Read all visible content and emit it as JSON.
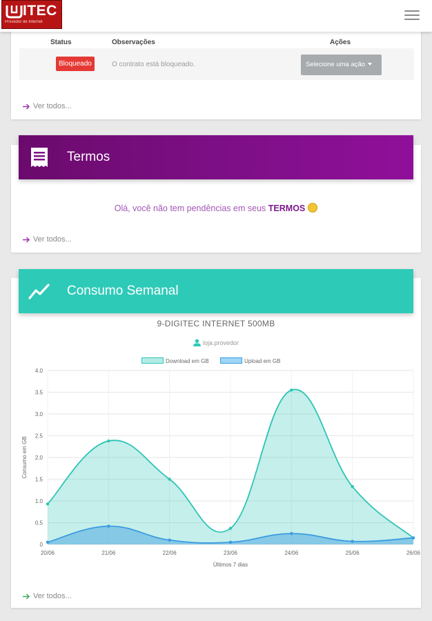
{
  "header": {
    "logo_text": "ITEC",
    "logo_sub": "Provedor de Internet",
    "menu_icon": "hamburger-icon"
  },
  "contracts": {
    "columns": {
      "status": "Status",
      "observations": "Observações",
      "actions": "Ações"
    },
    "row": {
      "status": "Bloqueado",
      "observation": "O contrato está bloqueado.",
      "action_select": "Selecione uma ação"
    },
    "status_color": "#e53935",
    "see_all": "Ver todos..."
  },
  "terms": {
    "title": "Termos",
    "icon": "document-list-icon",
    "message_prefix": "Olá, você não tem pendências em seus ",
    "message_bold": "TERMOS",
    "see_all": "Ver todos..."
  },
  "consumption": {
    "title": "Consumo Semanal",
    "icon": "trend-line-icon",
    "plan": "9-DIGITEC INTERNET 500MB",
    "user": "loja.provedor",
    "see_all": "Ver todos..."
  },
  "colors": {
    "purple": "#7c0f85",
    "teal": "#2ecab8",
    "download": "#2ec4b6",
    "upload": "#3a9be0"
  },
  "chart_data": {
    "type": "area",
    "x": [
      "20/06",
      "21/06",
      "22/06",
      "23/06",
      "24/06",
      "25/06",
      "26/06"
    ],
    "xlabel": "Últimos 7 dias",
    "ylabel": "Consumo em GB",
    "ylim": [
      0,
      4.0
    ],
    "yticks": [
      "0",
      "0.5",
      "1.0",
      "1.5",
      "2.0",
      "2.5",
      "3.0",
      "3.5",
      "4.0"
    ],
    "grid": true,
    "legend_position": "top",
    "series": [
      {
        "name": "Download em GB",
        "values": [
          0.93,
          2.38,
          1.5,
          0.37,
          3.55,
          1.33,
          0.15
        ]
      },
      {
        "name": "Upload em GB",
        "values": [
          0.05,
          0.42,
          0.1,
          0.05,
          0.25,
          0.07,
          0.15
        ]
      }
    ]
  }
}
